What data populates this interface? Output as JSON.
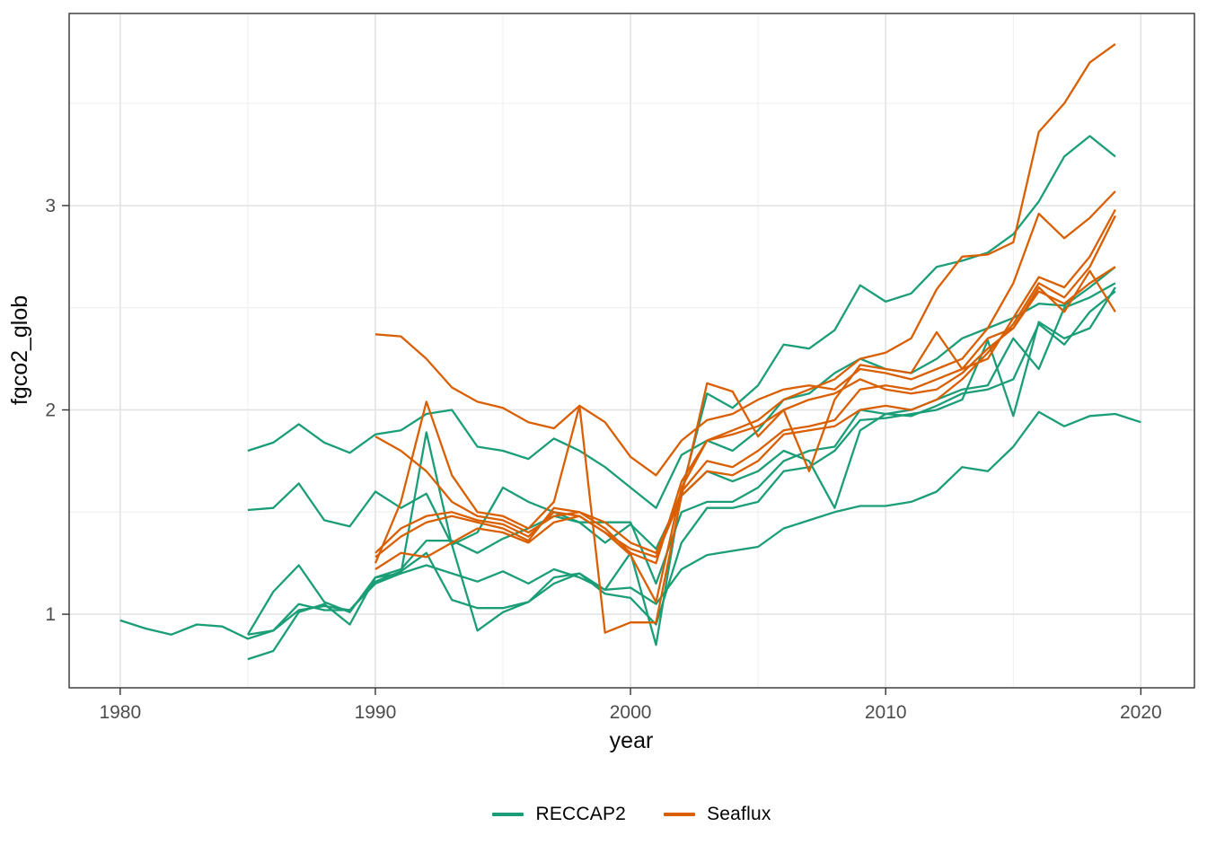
{
  "chart_data": {
    "type": "line",
    "title": "",
    "xlabel": "year",
    "ylabel": "fgco2_glob",
    "x_ticks": [
      "1980",
      "1990",
      "2000",
      "2010",
      "2020"
    ],
    "x_tick_years": [
      1980,
      1990,
      2000,
      2010,
      2020
    ],
    "x_minor_ticks": [
      1985,
      1995,
      2005,
      2015
    ],
    "y_ticks": [
      "1",
      "2",
      "3"
    ],
    "y_tick_values": [
      1,
      2,
      3
    ],
    "y_minor_ticks": [
      1.5,
      2.5,
      3.5
    ],
    "xlim": [
      1978.0,
      2022.1
    ],
    "ylim": [
      0.64,
      3.94
    ],
    "grid": true,
    "legend_position": "bottom",
    "groups": [
      {
        "name": "RECCAP2",
        "color": "#1B9E77"
      },
      {
        "name": "Seaflux",
        "color": "#D95F02"
      }
    ],
    "series": [
      {
        "name": "RECCAP2-1",
        "group": "RECCAP2",
        "start_year": 1980,
        "values": [
          0.97,
          0.93,
          0.9,
          0.95,
          0.94,
          0.88,
          0.92,
          1.02,
          1.04,
          1.02,
          1.15,
          1.2,
          1.24,
          1.2,
          1.16,
          1.21,
          1.15,
          1.22,
          1.18,
          1.12,
          1.13,
          1.05,
          1.22,
          1.29,
          1.31,
          1.33,
          1.42,
          1.46,
          1.5,
          1.53,
          1.53,
          1.55,
          1.6,
          1.72,
          1.7,
          1.82,
          1.99,
          1.92,
          1.97,
          1.98,
          1.94
        ]
      },
      {
        "name": "RECCAP2-2",
        "group": "RECCAP2",
        "start_year": 1985,
        "values": [
          1.8,
          1.84,
          1.93,
          1.84,
          1.79,
          1.88,
          1.9,
          1.98,
          2.0,
          1.82,
          1.8,
          1.76,
          1.86,
          1.8,
          1.72,
          1.62,
          1.52,
          1.78,
          1.85,
          1.8,
          1.9,
          2.05,
          2.08,
          2.18,
          2.25,
          2.2,
          2.18,
          2.25,
          2.35,
          2.4,
          2.45,
          2.52,
          2.51,
          2.6,
          2.7
        ]
      },
      {
        "name": "RECCAP2-3",
        "group": "RECCAP2",
        "start_year": 1985,
        "values": [
          1.51,
          1.52,
          1.64,
          1.46,
          1.43,
          1.6,
          1.52,
          1.59,
          1.34,
          1.4,
          1.62,
          1.55,
          1.5,
          1.45,
          1.35,
          1.44,
          1.32,
          1.58,
          1.7,
          1.65,
          1.7,
          1.8,
          1.75,
          1.52,
          1.9,
          1.98,
          1.97,
          2.02,
          2.08,
          2.1,
          2.15,
          2.42,
          2.32,
          2.48,
          2.58
        ]
      },
      {
        "name": "RECCAP2-4",
        "group": "RECCAP2",
        "start_year": 1985,
        "values": [
          0.9,
          1.11,
          1.24,
          1.06,
          1.01,
          1.18,
          1.2,
          1.89,
          1.34,
          0.92,
          1.01,
          1.06,
          1.18,
          1.2,
          1.12,
          1.3,
          0.85,
          1.6,
          2.08,
          2.01,
          2.12,
          2.32,
          2.3,
          2.39,
          2.61,
          2.53,
          2.57,
          2.7,
          2.73,
          2.77,
          2.86,
          3.02,
          3.24,
          3.34,
          3.24
        ]
      },
      {
        "name": "RECCAP2-5",
        "group": "RECCAP2",
        "start_year": 1985,
        "values": [
          0.78,
          0.82,
          1.01,
          1.05,
          0.95,
          1.18,
          1.22,
          1.36,
          1.36,
          1.3,
          1.37,
          1.42,
          1.48,
          1.45,
          1.45,
          1.45,
          1.15,
          1.5,
          1.55,
          1.55,
          1.62,
          1.75,
          1.8,
          1.82,
          2.0,
          1.98,
          2.0,
          2.05,
          2.1,
          2.12,
          2.35,
          2.2,
          2.5,
          2.55,
          2.62
        ]
      },
      {
        "name": "RECCAP2-6",
        "group": "RECCAP2",
        "start_year": 1985,
        "values": [
          0.9,
          0.92,
          1.05,
          1.02,
          1.02,
          1.16,
          1.21,
          1.3,
          1.07,
          1.03,
          1.03,
          1.06,
          1.15,
          1.2,
          1.1,
          1.08,
          0.95,
          1.35,
          1.52,
          1.52,
          1.55,
          1.7,
          1.72,
          1.8,
          1.95,
          1.96,
          1.98,
          2.0,
          2.05,
          2.34,
          1.97,
          2.43,
          2.35,
          2.4,
          2.6
        ]
      },
      {
        "name": "Seaflux-1",
        "group": "Seaflux",
        "start_year": 1990,
        "values": [
          2.37,
          2.36,
          2.25,
          2.11,
          2.04,
          2.01,
          1.94,
          1.91,
          2.02,
          1.94,
          1.77,
          1.68,
          1.85,
          1.95,
          1.98,
          2.05,
          2.1,
          2.12,
          2.1,
          2.2,
          2.18,
          2.15,
          2.2,
          2.25,
          2.4,
          2.62,
          2.96,
          2.84,
          2.94,
          3.07
        ]
      },
      {
        "name": "Seaflux-2",
        "group": "Seaflux",
        "start_year": 1990,
        "values": [
          1.87,
          1.8,
          1.7,
          1.55,
          1.48,
          1.46,
          1.4,
          1.48,
          1.5,
          1.45,
          1.35,
          1.3,
          1.6,
          1.75,
          1.72,
          1.8,
          1.9,
          1.92,
          1.95,
          2.1,
          2.12,
          2.1,
          2.15,
          2.2,
          2.25,
          2.45,
          2.65,
          2.6,
          2.75,
          2.98
        ]
      },
      {
        "name": "Seaflux-3",
        "group": "Seaflux",
        "start_year": 1990,
        "values": [
          1.25,
          1.55,
          2.04,
          1.68,
          1.5,
          1.48,
          1.42,
          1.55,
          2.02,
          0.91,
          0.96,
          0.96,
          1.58,
          2.13,
          2.09,
          1.87,
          2.0,
          1.7,
          2.05,
          2.22,
          2.2,
          2.18,
          2.38,
          2.2,
          2.35,
          2.4,
          2.6,
          2.48,
          2.68,
          2.48
        ]
      },
      {
        "name": "Seaflux-4",
        "group": "Seaflux",
        "start_year": 1990,
        "values": [
          1.22,
          1.3,
          1.28,
          1.35,
          1.42,
          1.4,
          1.35,
          1.45,
          1.48,
          1.4,
          1.29,
          1.06,
          1.62,
          1.85,
          1.88,
          1.92,
          2.0,
          2.05,
          2.08,
          2.15,
          2.1,
          2.08,
          2.1,
          2.18,
          2.3,
          2.4,
          2.58,
          2.52,
          2.62,
          2.7
        ]
      },
      {
        "name": "Seaflux-5",
        "group": "Seaflux",
        "start_year": 1990,
        "values": [
          1.3,
          1.42,
          1.48,
          1.5,
          1.46,
          1.44,
          1.38,
          1.5,
          1.48,
          1.4,
          1.32,
          1.28,
          1.58,
          1.7,
          1.68,
          1.75,
          1.88,
          1.9,
          1.92,
          2.0,
          2.02,
          2.0,
          2.05,
          2.15,
          2.28,
          2.42,
          2.62,
          2.55,
          2.7,
          2.95
        ]
      },
      {
        "name": "Seaflux-6",
        "group": "Seaflux",
        "start_year": 1990,
        "values": [
          1.28,
          1.38,
          1.45,
          1.48,
          1.45,
          1.42,
          1.36,
          1.52,
          1.5,
          1.42,
          1.3,
          1.25,
          1.65,
          1.85,
          1.9,
          1.95,
          2.05,
          2.1,
          2.15,
          2.25,
          2.28,
          2.35,
          2.59,
          2.75,
          2.76,
          2.82,
          3.36,
          3.5,
          3.7,
          3.79
        ]
      }
    ],
    "style": {
      "panel_border_color": "#333333",
      "grid_major_color": "#e4e4e4",
      "grid_minor_color": "#eeeeee",
      "tick_color": "#333333",
      "tick_label_color": "#4d4d4d",
      "axis_title_color": "#0a0a0a",
      "line_width": 2.3
    }
  }
}
